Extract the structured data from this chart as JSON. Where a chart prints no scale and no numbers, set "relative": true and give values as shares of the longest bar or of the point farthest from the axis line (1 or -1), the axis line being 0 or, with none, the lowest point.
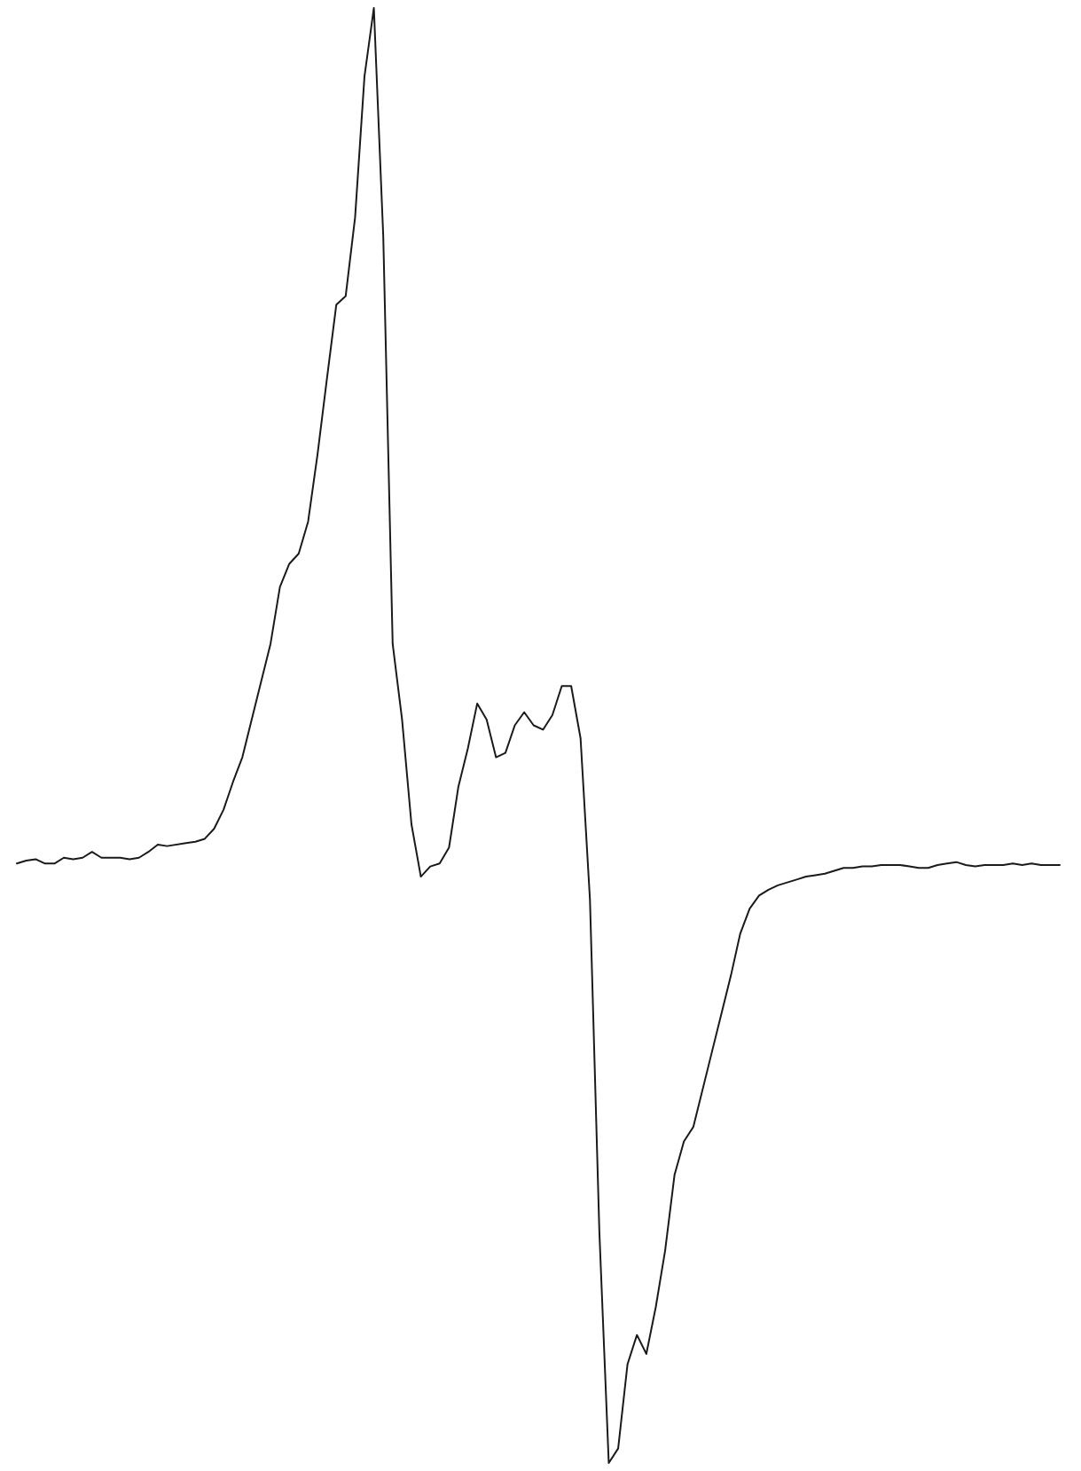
{
  "chart_data": {
    "type": "line",
    "relative": true,
    "color": "#1a1a1a",
    "categories": [
      null,
      null,
      null,
      null,
      null,
      null,
      null,
      null,
      null,
      null,
      null,
      null,
      null,
      null,
      null,
      null,
      null,
      null,
      null,
      null,
      null,
      null,
      null,
      null,
      null,
      null,
      null,
      null,
      null,
      null,
      null,
      null,
      null,
      null,
      null,
      null,
      null,
      null,
      null,
      null,
      null,
      null,
      null,
      null,
      null,
      null,
      null,
      null,
      null,
      null,
      null,
      null,
      null,
      null,
      null,
      null,
      null,
      null,
      null,
      null,
      null,
      null,
      null,
      null,
      null,
      null,
      null,
      null,
      null,
      null,
      null,
      null,
      null,
      null,
      null,
      null,
      null,
      null,
      null,
      null,
      null,
      null,
      null,
      null,
      null,
      null,
      null,
      null,
      null,
      null,
      null,
      null,
      null,
      null,
      null,
      null,
      null,
      null,
      null,
      null,
      null,
      null,
      null,
      null,
      null,
      null,
      null,
      null,
      null,
      null,
      null,
      null
    ],
    "values": [
      0.412,
      0.414,
      0.415,
      0.412,
      0.412,
      0.416,
      0.415,
      0.416,
      0.42,
      0.416,
      0.416,
      0.416,
      0.415,
      0.416,
      0.42,
      0.425,
      0.424,
      0.425,
      0.426,
      0.427,
      0.429,
      0.436,
      0.449,
      0.468,
      0.485,
      0.511,
      0.537,
      0.563,
      0.602,
      0.618,
      0.625,
      0.647,
      0.693,
      0.745,
      0.796,
      0.802,
      0.856,
      0.953,
      1,
      0.843,
      0.563,
      0.511,
      0.439,
      0.403,
      0.41,
      0.412,
      0.423,
      0.465,
      0.491,
      0.522,
      0.511,
      0.485,
      0.488,
      0.507,
      0.516,
      0.507,
      0.504,
      0.514,
      0.534,
      0.534,
      0.498,
      0.387,
      0.159,
      0,
      0.01,
      0.068,
      0.088,
      0.075,
      0.107,
      0.146,
      0.198,
      0.221,
      0.231,
      0.257,
      0.283,
      0.309,
      0.335,
      0.364,
      0.381,
      0.39,
      0.394,
      0.397,
      0.399,
      0.401,
      0.403,
      0.404,
      0.405,
      0.407,
      0.409,
      0.409,
      0.41,
      0.41,
      0.411,
      0.411,
      0.411,
      0.41,
      0.409,
      0.409,
      0.411,
      0.412,
      0.413,
      0.411,
      0.41,
      0.411,
      0.411,
      0.411,
      0.412,
      0.411,
      0.412,
      0.411,
      0.411,
      0.411
    ]
  }
}
